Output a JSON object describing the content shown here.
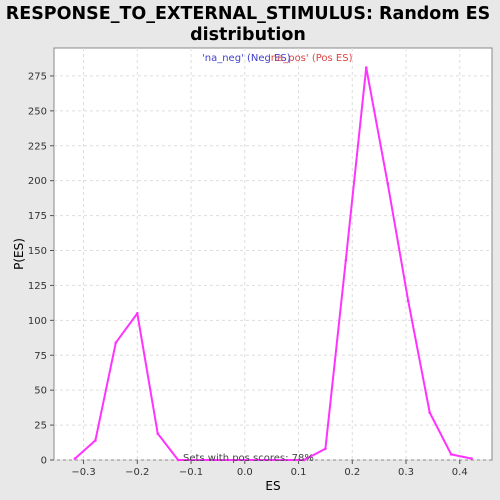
{
  "chart_data": {
    "type": "line",
    "title_line1": "RESPONSE_TO_EXTERNAL_STIMULUS: Random ES",
    "title_line2": "distribution",
    "xlabel": "ES",
    "ylabel": "P(ES)",
    "xlim": [
      -0.355,
      0.46
    ],
    "ylim": [
      0,
      295
    ],
    "x_ticks": [
      -0.3,
      -0.2,
      -0.1,
      0.0,
      0.1,
      0.2,
      0.3,
      0.4
    ],
    "x_tick_labels": [
      "−0.3",
      "−0.2",
      "−0.1",
      "0.0",
      "0.1",
      "0.2",
      "0.3",
      "0.4"
    ],
    "y_ticks": [
      0,
      25,
      50,
      75,
      100,
      125,
      150,
      175,
      200,
      225,
      250,
      275
    ],
    "y_tick_labels": [
      "0",
      "25",
      "50",
      "75",
      "100",
      "125",
      "150",
      "175",
      "200",
      "225",
      "250",
      "275"
    ],
    "grid": true,
    "legend": [
      {
        "label": "'na_neg' (Neg ES)",
        "color": "#4040cc"
      },
      {
        "label": "'na_pos' (Pos ES)",
        "color": "#dd4444"
      }
    ],
    "annotation": "Sets with pos scores: 78%",
    "line_color": "#ff33ff",
    "series": [
      {
        "points": [
          [
            -0.316,
            1
          ],
          [
            -0.278,
            14
          ],
          [
            -0.24,
            84
          ],
          [
            -0.2,
            105
          ],
          [
            -0.162,
            19
          ],
          [
            -0.124,
            0
          ],
          [
            0.11,
            0
          ],
          [
            0.15,
            8
          ],
          [
            0.188,
            143
          ],
          [
            0.226,
            281
          ],
          [
            0.266,
            198
          ],
          [
            0.304,
            114
          ],
          [
            0.344,
            34
          ],
          [
            0.384,
            4
          ],
          [
            0.422,
            1
          ]
        ]
      }
    ]
  }
}
